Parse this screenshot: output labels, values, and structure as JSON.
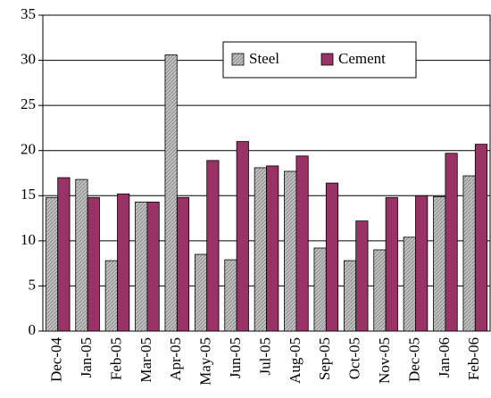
{
  "chart_data": {
    "type": "bar",
    "categories": [
      "Dec-04",
      "Jan-05",
      "Feb-05",
      "Mar-05",
      "Apr-05",
      "May-05",
      "Jun-05",
      "Jul-05",
      "Aug-05",
      "Sep-05",
      "Oct-05",
      "Nov-05",
      "Dec-05",
      "Jan-06",
      "Feb-06"
    ],
    "series": [
      {
        "name": "Steel",
        "color": "#c0c0c0",
        "values": [
          14.8,
          16.8,
          7.8,
          14.3,
          30.6,
          8.5,
          7.9,
          18.1,
          17.7,
          9.2,
          7.8,
          9.0,
          10.4,
          14.9,
          17.2
        ]
      },
      {
        "name": "Cement",
        "color": "#993366",
        "values": [
          17.0,
          14.8,
          15.2,
          14.3,
          14.8,
          18.9,
          21.0,
          18.3,
          19.4,
          16.4,
          12.2,
          14.8,
          15.0,
          19.7,
          20.7
        ]
      }
    ],
    "ylim": [
      0,
      35
    ],
    "yticks": [
      0,
      5,
      10,
      15,
      20,
      25,
      30,
      35
    ],
    "grid": true,
    "legend": "top-right"
  }
}
